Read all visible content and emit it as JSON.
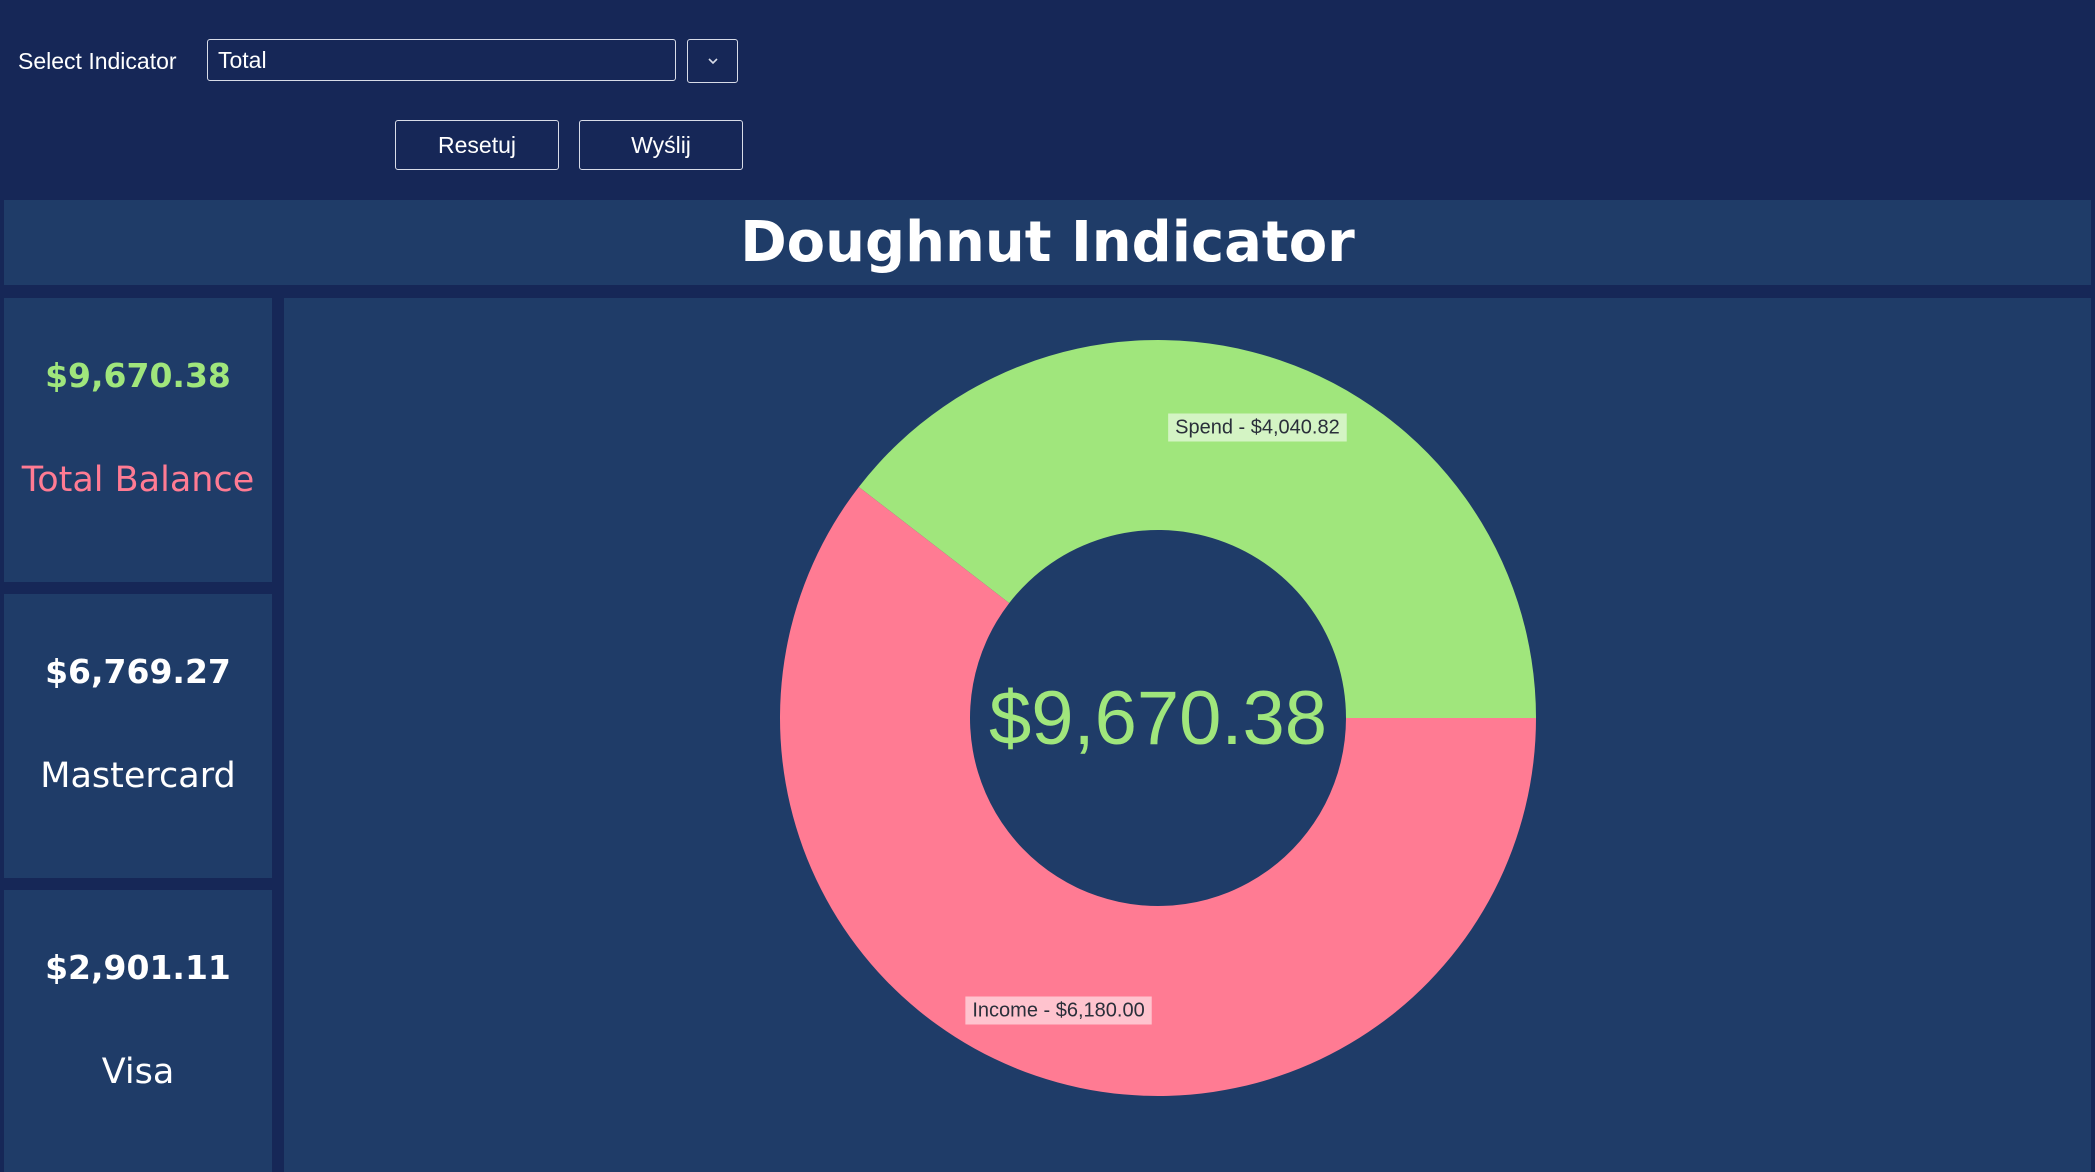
{
  "controls": {
    "select_label": "Select Indicator",
    "select_value": "Total",
    "reset_label": "Resetuj",
    "send_label": "Wyślij"
  },
  "title": "Doughnut Indicator",
  "cards": [
    {
      "amount": "$9,670.38",
      "name": "Total Balance",
      "amount_color": "#a0e67c",
      "name_color": "#ff7b93"
    },
    {
      "amount": "$6,769.27",
      "name": "Mastercard",
      "amount_color": "#ffffff",
      "name_color": "#ffffff"
    },
    {
      "amount": "$2,901.11",
      "name": "Visa",
      "amount_color": "#ffffff",
      "name_color": "#ffffff"
    }
  ],
  "colors": {
    "background": "#162757",
    "panel": "#1f3c68",
    "green": "#a0e67c",
    "pink": "#ff7b93"
  },
  "chart_data": {
    "type": "pie",
    "title": "Doughnut Indicator",
    "center_label": "$9,670.38",
    "slices": [
      {
        "name": "Spend",
        "value": 4040.82,
        "label": "Spend - $4,040.82",
        "color": "#a0e67c"
      },
      {
        "name": "Income",
        "value": 6180.0,
        "label": "Income - $6,180.00",
        "color": "#ff7b93"
      }
    ]
  }
}
